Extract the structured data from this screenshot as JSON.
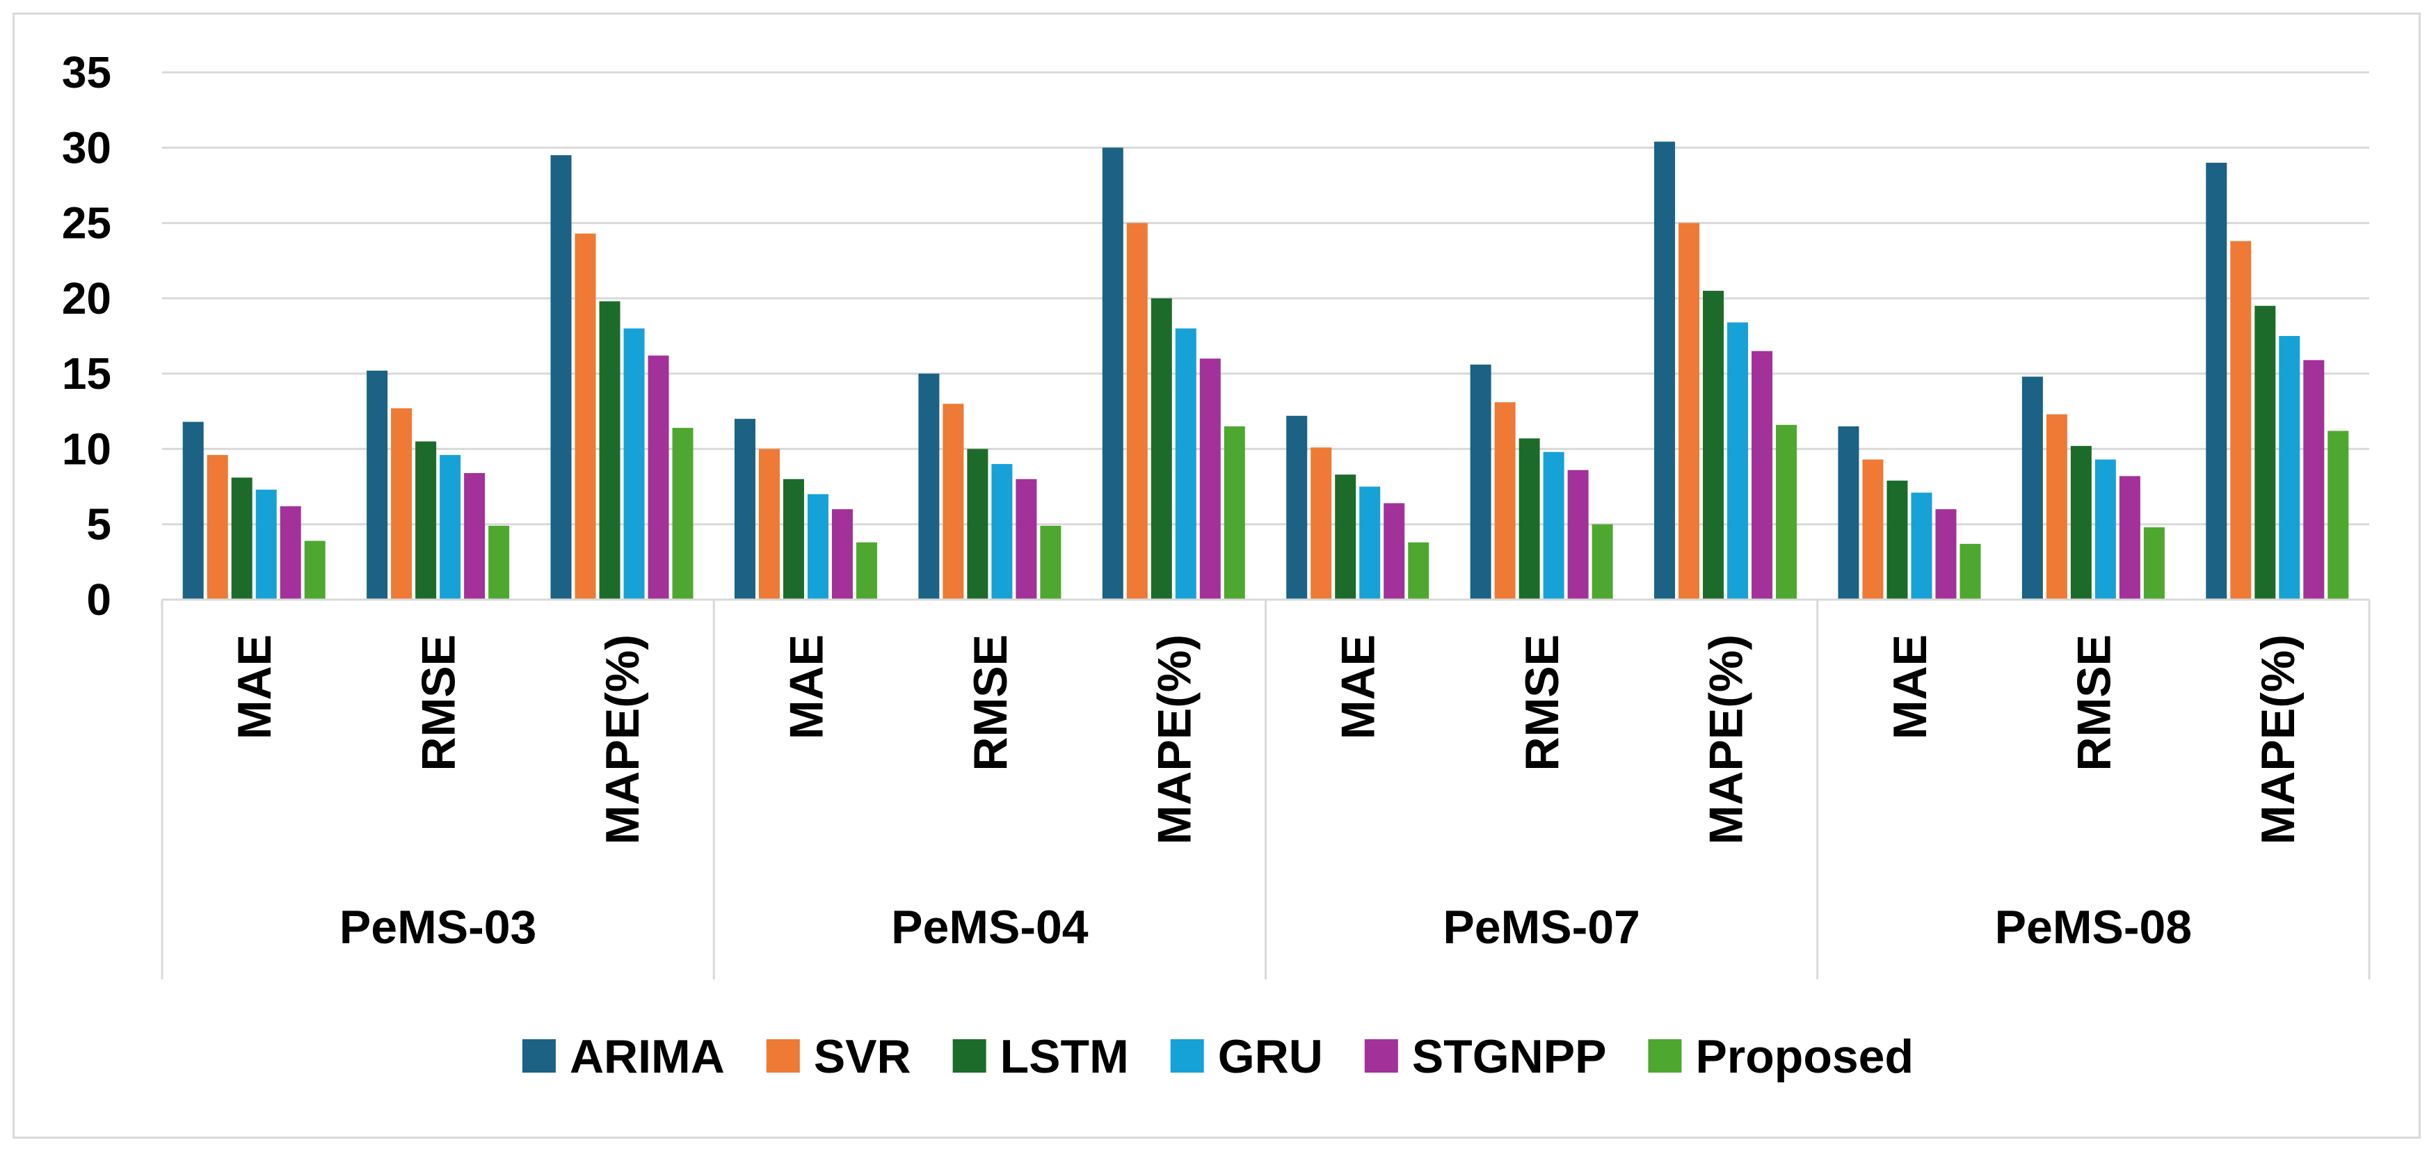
{
  "chart_data": {
    "type": "bar",
    "title": "",
    "xlabel": "",
    "ylabel": "",
    "ylim": [
      0,
      35
    ],
    "yticks": [
      0,
      5,
      10,
      15,
      20,
      25,
      30,
      35
    ],
    "grid": true,
    "legend_position": "bottom",
    "groups": [
      "PeMS-03",
      "PeMS-04",
      "PeMS-07",
      "PeMS-08"
    ],
    "metrics": [
      "MAE",
      "RMSE",
      "MAPE(%)"
    ],
    "categories": [
      "PeMS-03 MAE",
      "PeMS-03 RMSE",
      "PeMS-03 MAPE(%)",
      "PeMS-04 MAE",
      "PeMS-04 RMSE",
      "PeMS-04 MAPE(%)",
      "PeMS-07 MAE",
      "PeMS-07 RMSE",
      "PeMS-07 MAPE(%)",
      "PeMS-08 MAE",
      "PeMS-08 RMSE",
      "PeMS-08 MAPE(%)"
    ],
    "series": [
      {
        "name": "ARIMA",
        "color": "#1b6284",
        "values": [
          11.8,
          15.2,
          29.5,
          12.0,
          15.0,
          30.0,
          12.2,
          15.6,
          30.4,
          11.5,
          14.8,
          29.0
        ]
      },
      {
        "name": "SVR",
        "color": "#ee7a35",
        "values": [
          9.6,
          12.7,
          24.3,
          10.0,
          13.0,
          25.0,
          10.1,
          13.1,
          25.0,
          9.3,
          12.3,
          23.8
        ]
      },
      {
        "name": "LSTM",
        "color": "#1d6b2a",
        "values": [
          8.1,
          10.5,
          19.8,
          8.0,
          10.0,
          20.0,
          8.3,
          10.7,
          20.5,
          7.9,
          10.2,
          19.5
        ]
      },
      {
        "name": "GRU",
        "color": "#16a2d6",
        "values": [
          7.3,
          9.6,
          18.0,
          7.0,
          9.0,
          18.0,
          7.5,
          9.8,
          18.4,
          7.1,
          9.3,
          17.5
        ]
      },
      {
        "name": "STGNPP",
        "color": "#a3319a",
        "values": [
          6.2,
          8.4,
          16.2,
          6.0,
          8.0,
          16.0,
          6.4,
          8.6,
          16.5,
          6.0,
          8.2,
          15.9
        ]
      },
      {
        "name": "Proposed",
        "color": "#4ea82f",
        "values": [
          3.9,
          4.9,
          11.4,
          3.8,
          4.9,
          11.5,
          3.8,
          5.0,
          11.6,
          3.7,
          4.8,
          11.2
        ]
      }
    ]
  }
}
